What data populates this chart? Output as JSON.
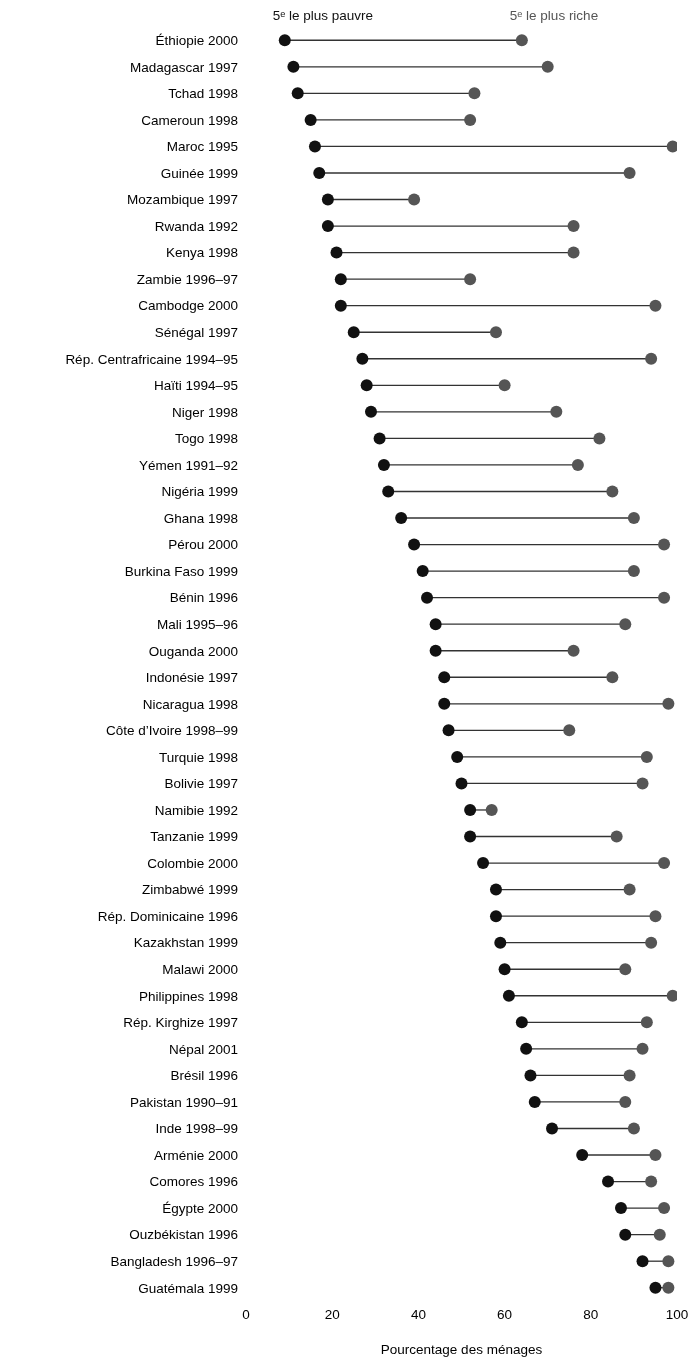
{
  "chart_data": {
    "type": "scatter",
    "xlabel": "Pourcentage des ménages",
    "categories": [
      "Éthiopie 2000",
      "Madagascar 1997",
      "Tchad 1998",
      "Cameroun 1998",
      "Maroc 1995",
      "Guinée 1999",
      "Mozambique 1997",
      "Rwanda 1992",
      "Kenya 1998",
      "Zambie 1996–97",
      "Cambodge 2000",
      "Sénégal 1997",
      "Rép. Centrafricaine 1994–95",
      "Haïti 1994–95",
      "Niger 1998",
      "Togo 1998",
      "Yémen 1991–92",
      "Nigéria 1999",
      "Ghana 1998",
      "Pérou 2000",
      "Burkina Faso 1999",
      "Bénin 1996",
      "Mali 1995–96",
      "Ouganda 2000",
      "Indonésie 1997",
      "Nicaragua 1998",
      "Côte d’Ivoire 1998–99",
      "Turquie 1998",
      "Bolivie 1997",
      "Namibie 1992",
      "Tanzanie 1999",
      "Colombie 2000",
      "Zimbabwé 1999",
      "Rép. Dominicaine 1996",
      "Kazakhstan 1999",
      "Malawi 2000",
      "Philippines 1998",
      "Rép. Kirghize 1997",
      "Népal 2001",
      "Brésil 1996",
      "Pakistan 1990–91",
      "Inde 1998–99",
      "Arménie 2000",
      "Comores 1996",
      "Égypte 2000",
      "Ouzbékistan 1996",
      "Bangladesh 1996–97",
      "Guatémala 1999"
    ],
    "series": [
      {
        "name": "5ᵉ le plus pauvre",
        "color": "#111111",
        "values": [
          9,
          11,
          12,
          15,
          16,
          17,
          19,
          19,
          21,
          22,
          22,
          25,
          27,
          28,
          29,
          31,
          32,
          33,
          36,
          39,
          41,
          42,
          44,
          44,
          46,
          46,
          47,
          49,
          50,
          52,
          52,
          55,
          58,
          58,
          59,
          60,
          61,
          64,
          65,
          66,
          67,
          71,
          78,
          84,
          87,
          88,
          92,
          95
        ]
      },
      {
        "name": "5ᵉ le plus riche",
        "color": "#555555",
        "values": [
          64,
          70,
          53,
          52,
          99,
          89,
          39,
          76,
          76,
          52,
          95,
          58,
          94,
          60,
          72,
          82,
          77,
          85,
          90,
          97,
          90,
          97,
          88,
          76,
          85,
          98,
          75,
          93,
          92,
          57,
          86,
          97,
          89,
          95,
          94,
          88,
          99,
          93,
          92,
          89,
          88,
          90,
          95,
          94,
          97,
          96,
          98,
          98
        ]
      }
    ],
    "orientation": "horizontal",
    "xlim": [
      0,
      100
    ],
    "xticks": [
      0,
      20,
      40,
      60,
      80,
      100
    ],
    "grid": false,
    "legend": "top",
    "marker": "circle"
  }
}
